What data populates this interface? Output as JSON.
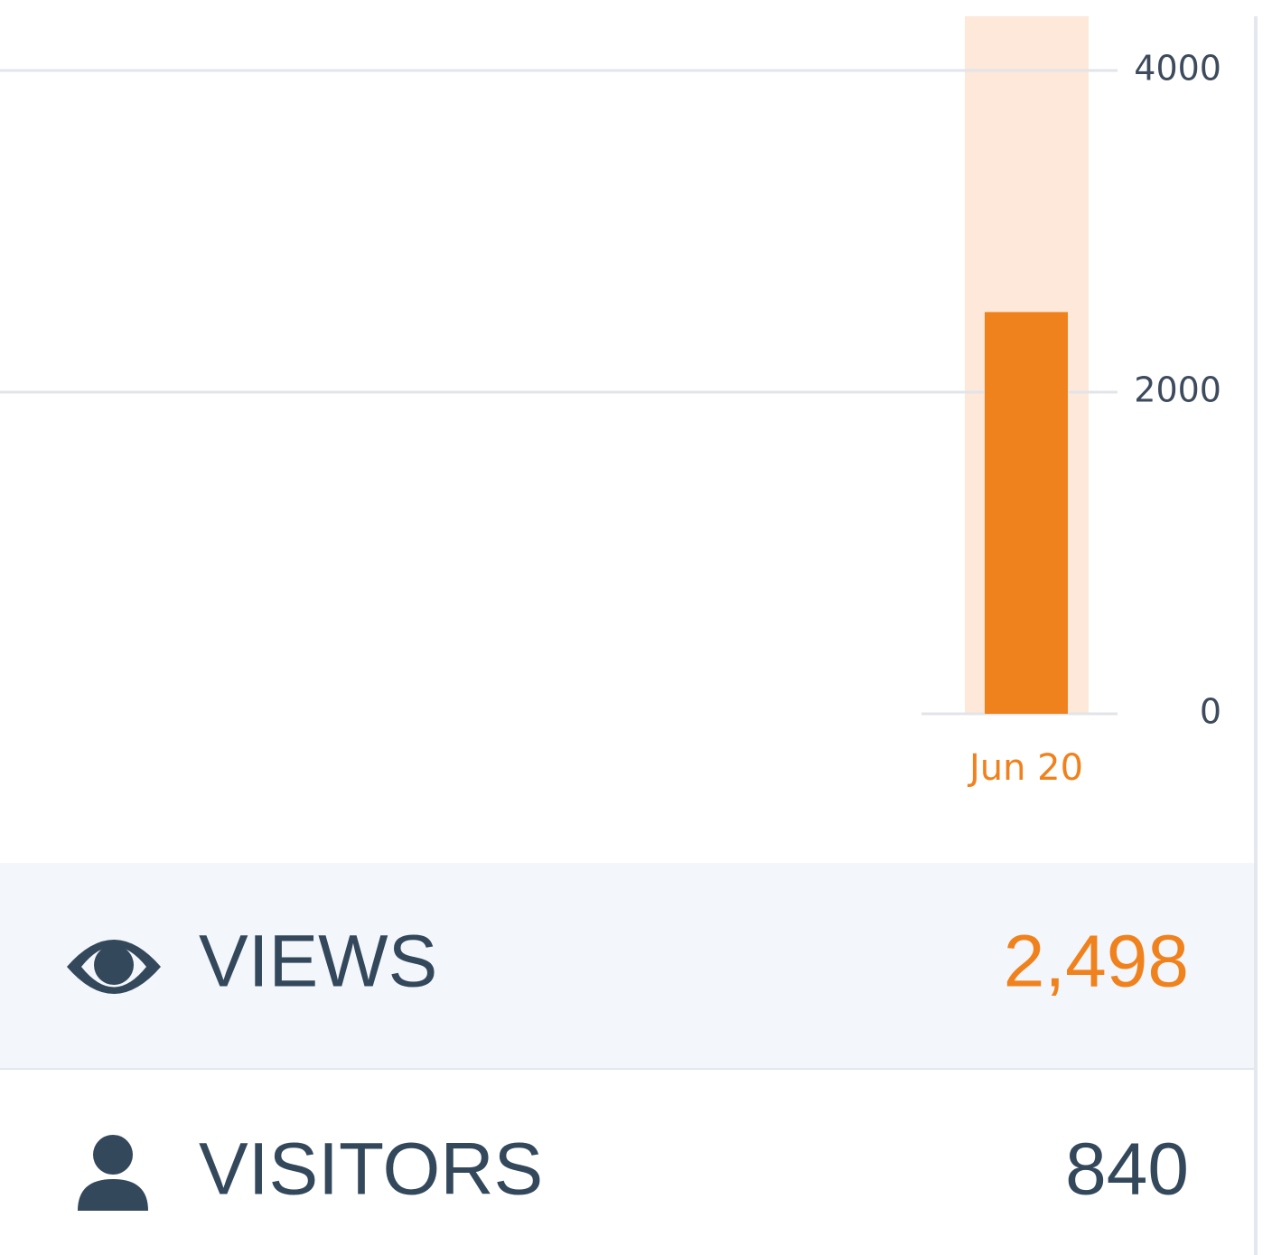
{
  "chart_data": {
    "type": "bar",
    "categories": [
      "Jun 20"
    ],
    "values": [
      2498
    ],
    "color": "#f0821e",
    "ylim": [
      0,
      4000
    ],
    "yticks": [
      0,
      2000,
      4000
    ],
    "grid": true
  },
  "stats": [
    {
      "label": "VIEWS",
      "value": "2,498"
    },
    {
      "label": "VISITORS",
      "value": "840"
    }
  ]
}
